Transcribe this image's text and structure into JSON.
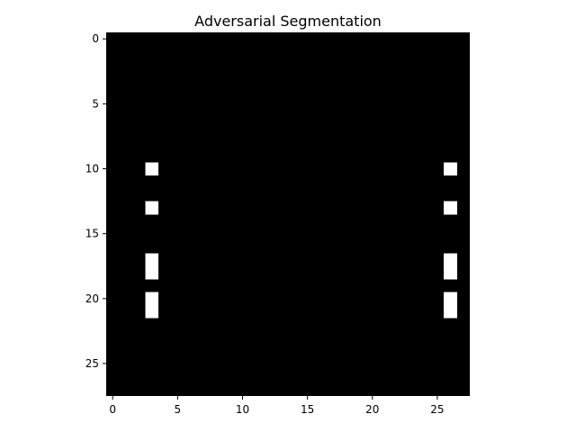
{
  "chart_data": {
    "type": "heatmap",
    "title": "Adversarial Segmentation",
    "xlabel": "",
    "ylabel": "",
    "grid": false,
    "legend": "none",
    "colormap": "gray",
    "background_value": 0,
    "rows": 28,
    "cols": 28,
    "xlim": [
      -0.5,
      27.5
    ],
    "ylim": [
      27.5,
      -0.5
    ],
    "xticks": [
      0,
      5,
      10,
      15,
      20,
      25
    ],
    "yticks": [
      0,
      5,
      10,
      15,
      20,
      25
    ],
    "nonzero_cells": [
      {
        "row": 10,
        "col": 3,
        "value": 1
      },
      {
        "row": 10,
        "col": 26,
        "value": 1
      },
      {
        "row": 13,
        "col": 3,
        "value": 1
      },
      {
        "row": 13,
        "col": 26,
        "value": 1
      },
      {
        "row": 17,
        "col": 3,
        "value": 1
      },
      {
        "row": 17,
        "col": 26,
        "value": 1
      },
      {
        "row": 18,
        "col": 3,
        "value": 1
      },
      {
        "row": 18,
        "col": 26,
        "value": 1
      },
      {
        "row": 20,
        "col": 3,
        "value": 1
      },
      {
        "row": 20,
        "col": 26,
        "value": 1
      },
      {
        "row": 21,
        "col": 3,
        "value": 1
      },
      {
        "row": 21,
        "col": 26,
        "value": 1
      }
    ],
    "colors": {
      "low": "#000000",
      "high": "#ffffff"
    }
  }
}
